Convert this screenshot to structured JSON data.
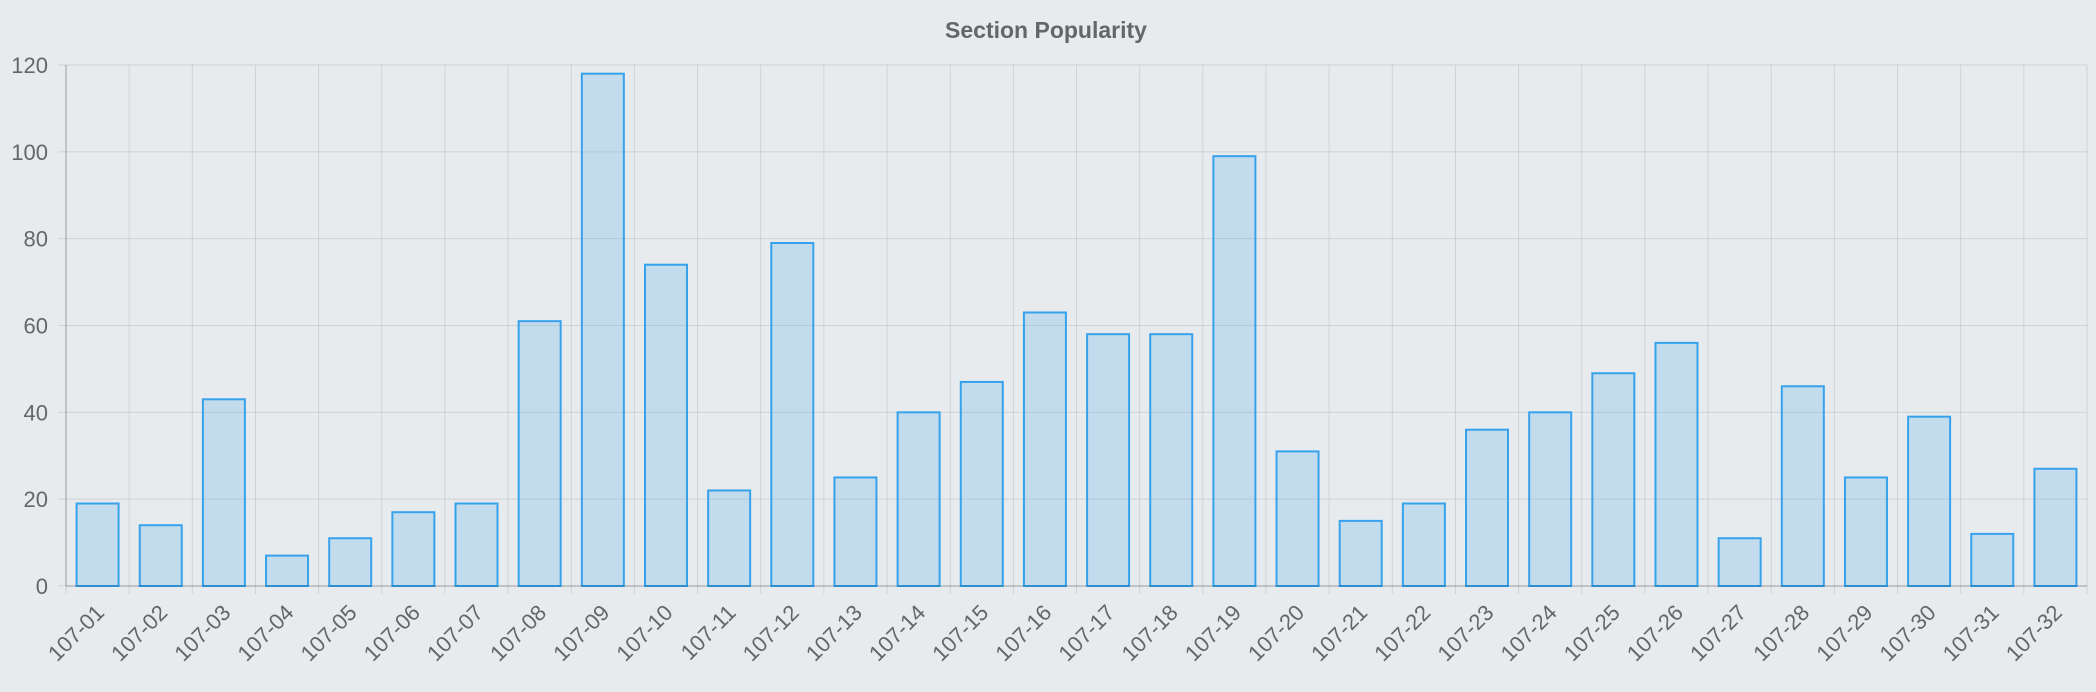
{
  "colors": {
    "background": "#e7ebee",
    "bar_fill": "rgba(54,162,235,0.2)",
    "bar_stroke": "#36a2eb",
    "grid": "rgba(0,0,0,0.1)",
    "text": "#666666"
  },
  "chart_data": {
    "type": "bar",
    "title": "Section Popularity",
    "xlabel": "",
    "ylabel": "",
    "ylim": [
      0,
      120
    ],
    "yticks": [
      0,
      20,
      40,
      60,
      80,
      100,
      120
    ],
    "grid": true,
    "legend": "none",
    "categories": [
      "107-01",
      "107-02",
      "107-03",
      "107-04",
      "107-05",
      "107-06",
      "107-07",
      "107-08",
      "107-09",
      "107-10",
      "107-11",
      "107-12",
      "107-13",
      "107-14",
      "107-15",
      "107-16",
      "107-17",
      "107-18",
      "107-19",
      "107-20",
      "107-21",
      "107-22",
      "107-23",
      "107-24",
      "107-25",
      "107-26",
      "107-27",
      "107-28",
      "107-29",
      "107-30",
      "107-31",
      "107-32"
    ],
    "values": [
      19,
      14,
      43,
      7,
      11,
      17,
      19,
      61,
      118,
      74,
      22,
      79,
      25,
      40,
      47,
      63,
      58,
      58,
      99,
      31,
      15,
      19,
      36,
      40,
      49,
      56,
      11,
      46,
      25,
      39,
      12,
      27
    ]
  }
}
